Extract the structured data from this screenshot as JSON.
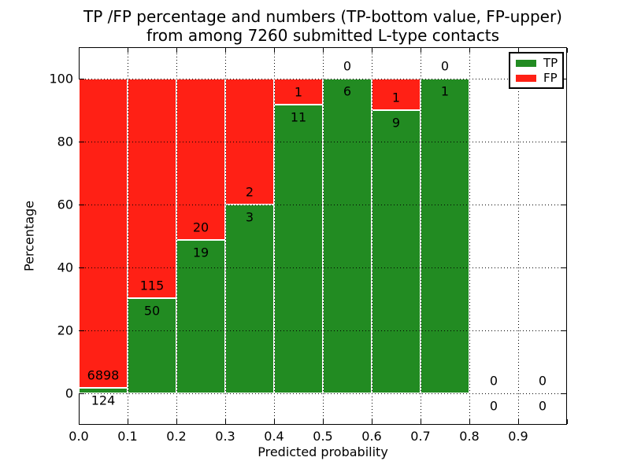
{
  "title": {
    "line1": "TP /FP percentage and numbers (TP-bottom value, FP-upper)",
    "line2": "from among 7260 submitted L-type contacts"
  },
  "axes": {
    "xlabel": "Predicted probability",
    "ylabel": "Percentage",
    "xticks": [
      {
        "value": 0.0,
        "label": "0.0"
      },
      {
        "value": 0.1,
        "label": "0.1"
      },
      {
        "value": 0.2,
        "label": "0.2"
      },
      {
        "value": 0.3,
        "label": "0.3"
      },
      {
        "value": 0.4,
        "label": "0.4"
      },
      {
        "value": 0.5,
        "label": "0.5"
      },
      {
        "value": 0.6,
        "label": "0.6"
      },
      {
        "value": 0.7,
        "label": "0.7"
      },
      {
        "value": 0.8,
        "label": "0.8"
      },
      {
        "value": 0.9,
        "label": "0.9"
      }
    ],
    "yticks": [
      {
        "value": 0,
        "label": "0"
      },
      {
        "value": 20,
        "label": "20"
      },
      {
        "value": 40,
        "label": "40"
      },
      {
        "value": 60,
        "label": "60"
      },
      {
        "value": 80,
        "label": "80"
      },
      {
        "value": 100,
        "label": "100"
      }
    ],
    "xlim": [
      0.0,
      1.0
    ],
    "ylim": [
      -10,
      110
    ]
  },
  "legend": {
    "position": "upper right",
    "entries": [
      {
        "label": "TP",
        "color": "#228b22"
      },
      {
        "label": "FP",
        "color": "#ff2015"
      }
    ]
  },
  "chart_data": {
    "type": "bar",
    "stacked": true,
    "grid": true,
    "total_contacts": 7260,
    "bin_width": 0.1,
    "tp_color": "#228b22",
    "fp_color": "#ff2015",
    "bins": [
      {
        "x0": 0.0,
        "x1": 0.1,
        "tp": 124,
        "fp": 6898,
        "tp_pct": 1.77
      },
      {
        "x0": 0.1,
        "x1": 0.2,
        "tp": 50,
        "fp": 115,
        "tp_pct": 30.3
      },
      {
        "x0": 0.2,
        "x1": 0.3,
        "tp": 19,
        "fp": 20,
        "tp_pct": 48.72
      },
      {
        "x0": 0.3,
        "x1": 0.4,
        "tp": 3,
        "fp": 2,
        "tp_pct": 60.0
      },
      {
        "x0": 0.4,
        "x1": 0.5,
        "tp": 11,
        "fp": 1,
        "tp_pct": 91.67
      },
      {
        "x0": 0.5,
        "x1": 0.6,
        "tp": 6,
        "fp": 0,
        "tp_pct": 100.0
      },
      {
        "x0": 0.6,
        "x1": 0.7,
        "tp": 9,
        "fp": 1,
        "tp_pct": 90.0
      },
      {
        "x0": 0.7,
        "x1": 0.8,
        "tp": 1,
        "fp": 0,
        "tp_pct": 100.0
      },
      {
        "x0": 0.8,
        "x1": 0.9,
        "tp": 0,
        "fp": 0,
        "tp_pct": 0.0
      },
      {
        "x0": 0.9,
        "x1": 1.0,
        "tp": 0,
        "fp": 0,
        "tp_pct": 0.0
      }
    ]
  }
}
